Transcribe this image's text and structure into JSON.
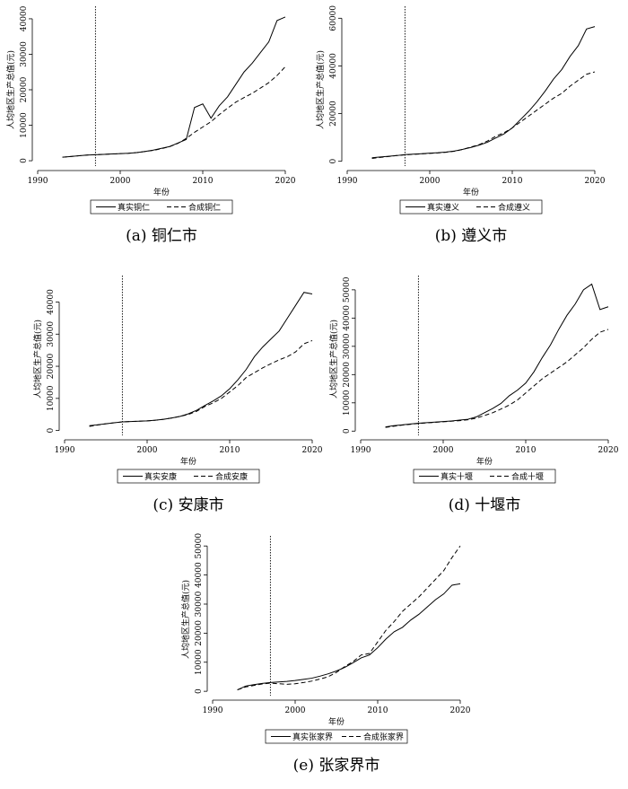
{
  "chart_data": [
    {
      "type": "line",
      "caption": "(a) 铜仁市",
      "ylabel": "人均地区生产总值(元)",
      "xlabel": "年份",
      "vline": 1997,
      "x": [
        1993,
        1994,
        1995,
        1996,
        1997,
        1998,
        1999,
        2000,
        2001,
        2002,
        2003,
        2004,
        2005,
        2006,
        2007,
        2008,
        2009,
        2010,
        2011,
        2012,
        2013,
        2014,
        2015,
        2016,
        2017,
        2018,
        2019,
        2020
      ],
      "xlim": [
        1990,
        2020
      ],
      "xticks": [
        1990,
        2000,
        2010,
        2020
      ],
      "ylim": [
        -1500,
        41500
      ],
      "yticks": [
        0,
        10000,
        20000,
        30000,
        40000
      ],
      "series": [
        {
          "name": "真实铜仁",
          "color": "#000000",
          "dash": false,
          "values": [
            1000,
            1200,
            1400,
            1600,
            1700,
            1800,
            1900,
            2000,
            2100,
            2300,
            2600,
            3000,
            3500,
            4000,
            5000,
            6000,
            15000,
            16000,
            12000,
            15500,
            18000,
            21500,
            25000,
            27500,
            30500,
            33500,
            39500,
            40500
          ]
        },
        {
          "name": "合成铜仁",
          "color": "#000000",
          "dash": true,
          "values": [
            1000,
            1200,
            1400,
            1600,
            1700,
            1800,
            1900,
            2000,
            2100,
            2300,
            2600,
            2900,
            3400,
            4000,
            4900,
            6300,
            8000,
            9500,
            11000,
            13000,
            14800,
            16500,
            17800,
            19000,
            20500,
            22000,
            24000,
            26500
          ]
        }
      ]
    },
    {
      "type": "line",
      "caption": "(b) 遵义市",
      "ylabel": "人均地区生产总值(元)",
      "xlabel": "年份",
      "vline": 1997,
      "x": [
        1993,
        1994,
        1995,
        1996,
        1997,
        1998,
        1999,
        2000,
        2001,
        2002,
        2003,
        2004,
        2005,
        2006,
        2007,
        2008,
        2009,
        2010,
        2011,
        2012,
        2013,
        2014,
        2015,
        2016,
        2017,
        2018,
        2019,
        2020
      ],
      "xlim": [
        1990,
        2020
      ],
      "xticks": [
        1990,
        2000,
        2010,
        2020
      ],
      "ylim": [
        -2000,
        62000
      ],
      "yticks": [
        0,
        20000,
        40000,
        60000
      ],
      "series": [
        {
          "name": "真实遵义",
          "color": "#000000",
          "dash": false,
          "values": [
            1500,
            1800,
            2100,
            2400,
            2800,
            3000,
            3200,
            3400,
            3600,
            3900,
            4300,
            5000,
            5800,
            6800,
            8000,
            9800,
            11500,
            14000,
            17500,
            21000,
            25000,
            29500,
            34500,
            38500,
            44000,
            48500,
            55500,
            56500
          ]
        },
        {
          "name": "合成遵义",
          "color": "#000000",
          "dash": true,
          "values": [
            1200,
            1600,
            2000,
            2400,
            2700,
            2900,
            3100,
            3300,
            3500,
            3800,
            4200,
            5000,
            6000,
            7000,
            8500,
            10500,
            12000,
            14000,
            16500,
            19000,
            21500,
            24000,
            26500,
            28500,
            31500,
            34000,
            36500,
            37500
          ]
        }
      ]
    },
    {
      "type": "line",
      "caption": "(c) 安康市",
      "ylabel": "人均地区生产总值(元)",
      "xlabel": "年份",
      "vline": 1997,
      "x": [
        1993,
        1994,
        1995,
        1996,
        1997,
        1998,
        1999,
        2000,
        2001,
        2002,
        2003,
        2004,
        2005,
        2006,
        2007,
        2008,
        2009,
        2010,
        2011,
        2012,
        2013,
        2014,
        2015,
        2016,
        2017,
        2018,
        2019,
        2020
      ],
      "xlim": [
        1990,
        2020
      ],
      "xticks": [
        1990,
        2000,
        2010,
        2020
      ],
      "ylim": [
        -1500,
        46000
      ],
      "yticks": [
        0,
        10000,
        20000,
        30000,
        40000
      ],
      "series": [
        {
          "name": "真实安康",
          "color": "#000000",
          "dash": false,
          "values": [
            1500,
            1800,
            2100,
            2400,
            2700,
            2800,
            2900,
            3000,
            3200,
            3500,
            3900,
            4400,
            5200,
            6300,
            7800,
            9200,
            10800,
            13000,
            15800,
            19000,
            23000,
            26000,
            28500,
            31000,
            35000,
            39000,
            43000,
            42500
          ]
        },
        {
          "name": "合成安康",
          "color": "#000000",
          "dash": true,
          "values": [
            1300,
            1700,
            2100,
            2400,
            2700,
            2800,
            2900,
            3000,
            3200,
            3500,
            3900,
            4400,
            5000,
            6000,
            7500,
            8600,
            10000,
            12000,
            14000,
            16500,
            18000,
            19500,
            20800,
            22000,
            23000,
            24500,
            27000,
            28000
          ]
        }
      ]
    },
    {
      "type": "line",
      "caption": "(d) 十堰市",
      "ylabel": "人均地区生产总值(元)",
      "xlabel": "年份",
      "vline": 1997,
      "x": [
        1993,
        1994,
        1995,
        1996,
        1997,
        1998,
        1999,
        2000,
        2001,
        2002,
        2003,
        2004,
        2005,
        2006,
        2007,
        2008,
        2009,
        2010,
        2011,
        2012,
        2013,
        2014,
        2015,
        2016,
        2017,
        2018,
        2019,
        2020
      ],
      "xlim": [
        1990,
        2020
      ],
      "xticks": [
        1990,
        2000,
        2010,
        2020
      ],
      "ylim": [
        -1500,
        52500
      ],
      "yticks": [
        0,
        10000,
        20000,
        30000,
        40000,
        50000
      ],
      "series": [
        {
          "name": "真实十堰",
          "color": "#000000",
          "dash": false,
          "values": [
            1500,
            1900,
            2200,
            2500,
            2800,
            3000,
            3200,
            3400,
            3600,
            3900,
            4200,
            5000,
            6500,
            8000,
            9800,
            12500,
            14500,
            17000,
            21000,
            26000,
            30500,
            36000,
            41000,
            45000,
            50000,
            52000,
            43000,
            44000
          ]
        },
        {
          "name": "合成十堰",
          "color": "#000000",
          "dash": true,
          "values": [
            1300,
            1700,
            2100,
            2400,
            2700,
            2900,
            3100,
            3300,
            3500,
            3700,
            4000,
            4600,
            5500,
            6500,
            7800,
            9200,
            11000,
            13500,
            16000,
            18500,
            20500,
            22500,
            24500,
            27000,
            29500,
            32500,
            35000,
            36000
          ]
        }
      ]
    },
    {
      "type": "line",
      "caption": "(e) 张家界市",
      "ylabel": "人均地区生产总值(元)",
      "xlabel": "年份",
      "vline": 1997,
      "x": [
        1993,
        1994,
        1995,
        1996,
        1997,
        1998,
        1999,
        2000,
        2001,
        2002,
        2003,
        2004,
        2005,
        2006,
        2007,
        2008,
        2009,
        2010,
        2011,
        2012,
        2013,
        2014,
        2015,
        2016,
        2017,
        2018,
        2019,
        2020
      ],
      "xlim": [
        1990,
        2020
      ],
      "xticks": [
        1990,
        2000,
        2010,
        2020
      ],
      "ylim": [
        -1500,
        51000
      ],
      "yticks": [
        0,
        10000,
        20000,
        30000,
        40000,
        50000
      ],
      "series": [
        {
          "name": "真实张家界",
          "color": "#000000",
          "dash": false,
          "values": [
            500,
            1800,
            2300,
            2700,
            3000,
            3200,
            3400,
            3700,
            4100,
            4500,
            5200,
            6000,
            7000,
            8200,
            9800,
            11500,
            12500,
            15000,
            18000,
            20500,
            22000,
            24500,
            26500,
            29000,
            31500,
            33500,
            36500,
            37000
          ]
        },
        {
          "name": "合成张家界",
          "color": "#000000",
          "dash": true,
          "values": [
            500,
            1500,
            2000,
            2500,
            2800,
            2600,
            2400,
            2600,
            3000,
            3500,
            4200,
            5000,
            6500,
            8500,
            10200,
            12500,
            13000,
            17000,
            21000,
            24000,
            27500,
            30000,
            32500,
            35500,
            38500,
            41500,
            46000,
            50000
          ]
        }
      ]
    }
  ]
}
